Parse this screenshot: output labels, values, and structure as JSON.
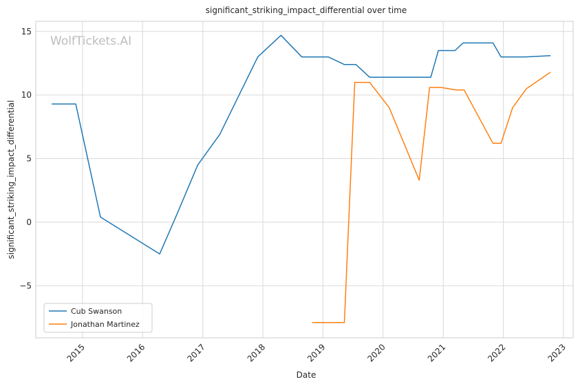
{
  "chart_data": {
    "type": "line",
    "title": "significant_striking_impact_differential over time",
    "xlabel": "Date",
    "ylabel": "significant_striking_impact_differential",
    "watermark": "WolfTickets.AI",
    "xlim": [
      "2014-03-23",
      "2023-03-01"
    ],
    "ylim": [
      -9.1,
      15.8
    ],
    "xticks": [
      {
        "date": "2015-01-01",
        "label": "2015"
      },
      {
        "date": "2016-01-01",
        "label": "2016"
      },
      {
        "date": "2017-01-01",
        "label": "2017"
      },
      {
        "date": "2018-01-01",
        "label": "2018"
      },
      {
        "date": "2019-01-01",
        "label": "2019"
      },
      {
        "date": "2020-01-01",
        "label": "2020"
      },
      {
        "date": "2021-01-01",
        "label": "2021"
      },
      {
        "date": "2022-01-01",
        "label": "2022"
      },
      {
        "date": "2023-01-01",
        "label": "2023"
      }
    ],
    "yticks": [
      {
        "value": -5,
        "label": "−5"
      },
      {
        "value": 0,
        "label": "0"
      },
      {
        "value": 5,
        "label": "5"
      },
      {
        "value": 10,
        "label": "10"
      },
      {
        "value": 15,
        "label": "15"
      }
    ],
    "grid": true,
    "legend_position": "lower-left",
    "series": [
      {
        "name": "Cub Swanson",
        "color": "#1f77b4",
        "points": [
          [
            "2014-06-28",
            9.3
          ],
          [
            "2014-11-21",
            9.3
          ],
          [
            "2015-04-20",
            0.4
          ],
          [
            "2016-04-14",
            -2.5
          ],
          [
            "2016-07-27",
            0.6
          ],
          [
            "2016-12-01",
            4.5
          ],
          [
            "2017-04-14",
            6.9
          ],
          [
            "2017-12-01",
            13.0
          ],
          [
            "2018-04-21",
            14.7
          ],
          [
            "2018-08-25",
            13.0
          ],
          [
            "2019-02-02",
            13.0
          ],
          [
            "2019-05-11",
            12.4
          ],
          [
            "2019-07-20",
            12.4
          ],
          [
            "2019-10-12",
            11.4
          ],
          [
            "2020-10-17",
            11.4
          ],
          [
            "2020-12-02",
            13.5
          ],
          [
            "2021-03-13",
            13.5
          ],
          [
            "2021-05-01",
            14.1
          ],
          [
            "2021-10-30",
            14.1
          ],
          [
            "2021-12-18",
            13.0
          ],
          [
            "2022-05-14",
            13.0
          ],
          [
            "2022-10-15",
            13.1
          ]
        ]
      },
      {
        "name": "Jonathan Martinez",
        "color": "#ff7f0e",
        "points": [
          [
            "2018-10-27",
            -7.9
          ],
          [
            "2019-05-11",
            -7.9
          ],
          [
            "2019-07-13",
            11.0
          ],
          [
            "2019-10-12",
            11.0
          ],
          [
            "2020-02-08",
            9.0
          ],
          [
            "2020-08-08",
            3.3
          ],
          [
            "2020-10-10",
            10.6
          ],
          [
            "2020-12-19",
            10.6
          ],
          [
            "2021-03-20",
            10.4
          ],
          [
            "2021-05-08",
            10.4
          ],
          [
            "2021-10-30",
            6.2
          ],
          [
            "2021-12-18",
            6.2
          ],
          [
            "2022-02-26",
            9.0
          ],
          [
            "2022-05-21",
            10.5
          ],
          [
            "2022-10-15",
            11.8
          ]
        ]
      }
    ]
  }
}
